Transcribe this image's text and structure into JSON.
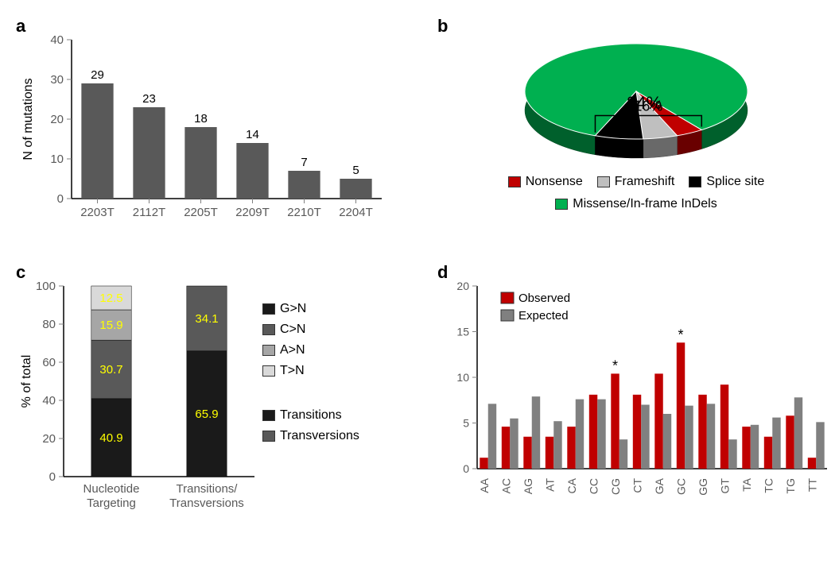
{
  "panels": {
    "a": "a",
    "b": "b",
    "c": "c",
    "d": "d"
  },
  "chartA": {
    "type": "bar",
    "ylabel": "N of mutations",
    "categories": [
      "2203T",
      "2112T",
      "2205T",
      "2209T",
      "2210T",
      "2204T"
    ],
    "values": [
      29,
      23,
      18,
      14,
      7,
      5
    ],
    "ylim": [
      0,
      40
    ],
    "ytick_step": 10,
    "bar_color": "#595959",
    "axis_color": "#000000",
    "tick_color": "#808080",
    "label_fontsize": 16,
    "tick_fontsize": 15,
    "value_fontsize": 15,
    "bar_width_ratio": 0.62
  },
  "chartB": {
    "type": "pie3d",
    "slices": [
      {
        "label": "Missense/In-frame InDels",
        "value": 84,
        "color": "#00b050"
      },
      {
        "label": "Nonsense",
        "value": 4,
        "color": "#c00000"
      },
      {
        "label": "Frameshift",
        "value": 5,
        "color": "#bfbfbf"
      },
      {
        "label": "Splice site",
        "value": 7,
        "color": "#000000"
      }
    ],
    "callout_group_pct": "16%",
    "main_pct": "84%",
    "label_fontsize": 16,
    "callout_fontsize": 18
  },
  "chartC": {
    "type": "stacked_bar",
    "ylabel": "% of total",
    "ylim": [
      0,
      100
    ],
    "ytick_step": 20,
    "categories": [
      "Nucleotide\nTargeting",
      "Transitions/\nTransversions"
    ],
    "stacks": [
      [
        {
          "label": "G>N",
          "value": 40.9,
          "color": "#1a1a1a",
          "text_color": "#ffff00"
        },
        {
          "label": "C>N",
          "value": 30.7,
          "color": "#595959",
          "text_color": "#ffff00"
        },
        {
          "label": "A>N",
          "value": 15.9,
          "color": "#a6a6a6",
          "text_color": "#ffff00"
        },
        {
          "label": "T>N",
          "value": 12.5,
          "color": "#d9d9d9",
          "text_color": "#ffff00"
        }
      ],
      [
        {
          "label": "Transitions",
          "value": 65.9,
          "color": "#1a1a1a",
          "text_color": "#ffff00"
        },
        {
          "label": "Transversions",
          "value": 34.1,
          "color": "#595959",
          "text_color": "#ffff00"
        }
      ]
    ],
    "legend1": [
      {
        "label": "G>N",
        "color": "#1a1a1a"
      },
      {
        "label": "C>N",
        "color": "#595959"
      },
      {
        "label": "A>N",
        "color": "#a6a6a6"
      },
      {
        "label": "T>N",
        "color": "#d9d9d9"
      }
    ],
    "legend2": [
      {
        "label": "Transitions",
        "color": "#1a1a1a"
      },
      {
        "label": "Transversions",
        "color": "#595959"
      }
    ],
    "label_fontsize": 16,
    "tick_fontsize": 15,
    "value_fontsize": 15,
    "bar_width_ratio": 0.42
  },
  "chartD": {
    "type": "grouped_bar",
    "ylim": [
      0,
      20
    ],
    "ytick_step": 5,
    "categories": [
      "AA",
      "AC",
      "AG",
      "AT",
      "CA",
      "CC",
      "CG",
      "CT",
      "GA",
      "GC",
      "GG",
      "GT",
      "TA",
      "TC",
      "TG",
      "TT"
    ],
    "series": [
      {
        "label": "Observed",
        "color": "#c00000",
        "values": [
          1.2,
          4.6,
          3.5,
          3.5,
          4.6,
          8.1,
          10.4,
          8.1,
          10.4,
          13.8,
          8.1,
          9.2,
          4.6,
          3.5,
          5.8,
          1.2
        ]
      },
      {
        "label": "Expected",
        "color": "#808080",
        "values": [
          7.1,
          5.5,
          7.9,
          5.2,
          7.6,
          7.6,
          3.2,
          7.0,
          6.0,
          6.9,
          7.1,
          3.2,
          4.8,
          5.6,
          7.8,
          5.1
        ]
      }
    ],
    "sig_marks": {
      "CG": "*",
      "GC": "*"
    },
    "tick_fontsize": 14,
    "legend_fontsize": 15,
    "bar_width_ratio": 0.38
  }
}
